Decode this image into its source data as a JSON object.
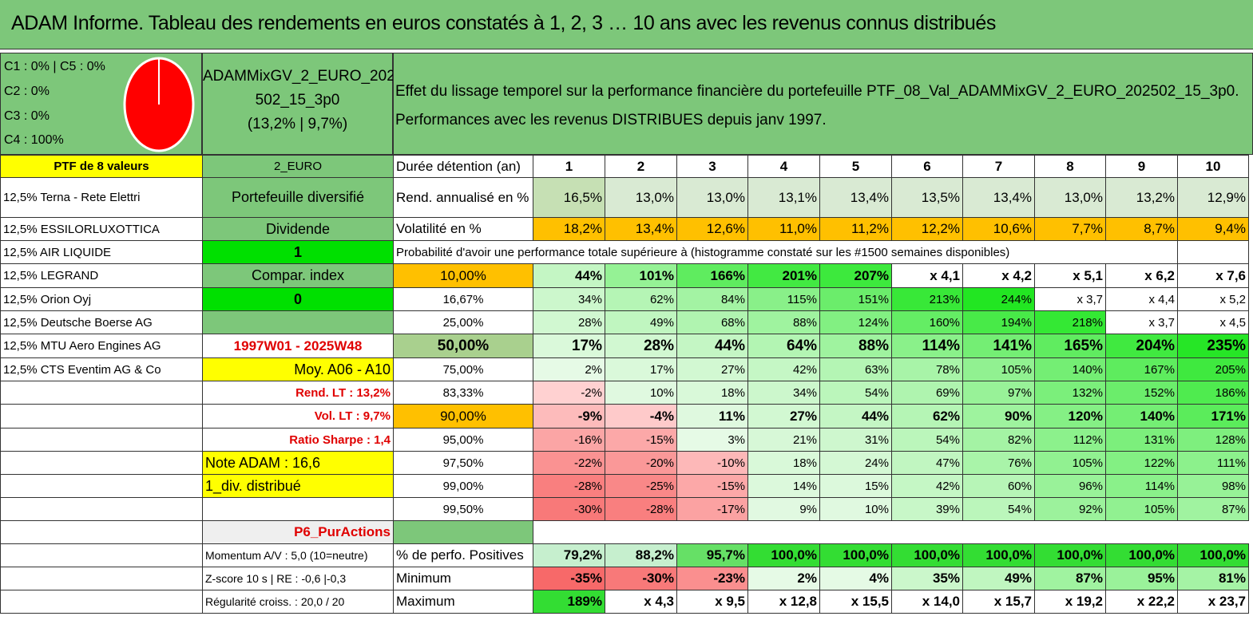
{
  "title": "ADAM Informe. Tableau des rendements en euros constatés à 1, 2, 3 … 10 ans avec les revenus connus distribués",
  "legend": [
    "C1 : 0% | C5 : 0%",
    "C2 : 0%",
    "C3 : 0%",
    "C4 : 100%"
  ],
  "pie": {
    "C4": 100,
    "color": "#ff0000"
  },
  "portfolio_name": [
    "ADAMMixGV_2_EURO_202",
    "502_15_3p0",
    "(13,2% | 9,7%)"
  ],
  "description": [
    "Effet du lissage temporel sur la performance financière du portefeuille PTF_08_Val_ADAMMixGV_2_EURO_202502_15_3p0.",
    "Performances avec les revenus DISTRIBUES depuis janv 1997."
  ],
  "col_a": [
    "PTF de 8 valeurs",
    "12,5% Terna - Rete Elettri",
    "12,5% ESSILORLUXOTTICA",
    "12,5% AIR LIQUIDE",
    "12,5% LEGRAND",
    "12,5% Orion Oyj",
    "12,5% Deutsche Boerse AG",
    "12,5% MTU Aero Engines AG",
    "12,5% CTS Eventim AG & Co",
    "",
    "",
    "",
    "",
    "",
    "",
    "",
    "",
    "",
    ""
  ],
  "col_b": [
    "2_EURO",
    "Portefeuille diversifié",
    "Dividende",
    "1",
    "Compar. index",
    "0",
    "",
    "1997W01 - 2025W48",
    "Moy. A06 - A10",
    "Rend. LT : 13,2%",
    "Vol. LT : 9,7%",
    "Ratio Sharpe : 1,4",
    "Note ADAM : 16,6",
    "1_div. distribué",
    "",
    "P6_PurActions",
    "Momentum A/V : 5,0 (10=neutre)",
    "Z-score 10 s | RE : -0,6 |-0,3",
    "Régularité croiss. : 20,0 / 20"
  ],
  "header": {
    "label": "Durée détention (an)",
    "years": [
      "1",
      "2",
      "3",
      "4",
      "5",
      "6",
      "7",
      "8",
      "9",
      "10"
    ]
  },
  "rend": {
    "label": "Rend. annualisé en %",
    "values": [
      "16,5%",
      "13,0%",
      "13,0%",
      "13,1%",
      "13,4%",
      "13,5%",
      "13,4%",
      "13,0%",
      "13,2%",
      "12,9%"
    ]
  },
  "vol": {
    "label": "Volatilité en %",
    "values": [
      "18,2%",
      "13,4%",
      "12,6%",
      "11,0%",
      "11,2%",
      "12,2%",
      "10,6%",
      "7,7%",
      "8,7%",
      "9,4%"
    ]
  },
  "prob_title": "Probabilité d'avoir une performance totale supérieure à (histogramme constaté sur les #1500 semaines disponibles)",
  "prob_rows": [
    {
      "p": "10,00%",
      "v": [
        "44%",
        "101%",
        "166%",
        "201%",
        "207%",
        "x 4,1",
        "x 4,2",
        "x 5,1",
        "x 6,2",
        "x 7,6"
      ]
    },
    {
      "p": "16,67%",
      "v": [
        "34%",
        "62%",
        "84%",
        "115%",
        "151%",
        "213%",
        "244%",
        "x 3,7",
        "x 4,4",
        "x 5,2"
      ]
    },
    {
      "p": "25,00%",
      "v": [
        "28%",
        "49%",
        "68%",
        "88%",
        "124%",
        "160%",
        "194%",
        "218%",
        "x 3,7",
        "x 4,5"
      ]
    },
    {
      "p": "50,00%",
      "v": [
        "17%",
        "28%",
        "44%",
        "64%",
        "88%",
        "114%",
        "141%",
        "165%",
        "204%",
        "235%"
      ]
    },
    {
      "p": "75,00%",
      "v": [
        "2%",
        "17%",
        "27%",
        "42%",
        "63%",
        "78%",
        "105%",
        "140%",
        "167%",
        "205%"
      ]
    },
    {
      "p": "83,33%",
      "v": [
        "-2%",
        "10%",
        "18%",
        "34%",
        "54%",
        "69%",
        "97%",
        "132%",
        "152%",
        "186%"
      ]
    },
    {
      "p": "90,00%",
      "v": [
        "-9%",
        "-4%",
        "11%",
        "27%",
        "44%",
        "62%",
        "90%",
        "120%",
        "140%",
        "171%"
      ]
    },
    {
      "p": "95,00%",
      "v": [
        "-16%",
        "-15%",
        "3%",
        "21%",
        "31%",
        "54%",
        "82%",
        "112%",
        "131%",
        "128%"
      ]
    },
    {
      "p": "97,50%",
      "v": [
        "-22%",
        "-20%",
        "-10%",
        "18%",
        "24%",
        "47%",
        "76%",
        "105%",
        "122%",
        "111%"
      ]
    },
    {
      "p": "99,00%",
      "v": [
        "-28%",
        "-25%",
        "-15%",
        "14%",
        "15%",
        "42%",
        "60%",
        "96%",
        "114%",
        "98%"
      ]
    },
    {
      "p": "99,50%",
      "v": [
        "-30%",
        "-28%",
        "-17%",
        "9%",
        "10%",
        "39%",
        "54%",
        "92%",
        "105%",
        "87%"
      ]
    }
  ],
  "pos": {
    "label": "% de perfo. Positives",
    "values": [
      "79,2%",
      "88,2%",
      "95,7%",
      "100,0%",
      "100,0%",
      "100,0%",
      "100,0%",
      "100,0%",
      "100,0%",
      "100,0%"
    ]
  },
  "min": {
    "label": "Minimum",
    "values": [
      "-35%",
      "-30%",
      "-23%",
      "2%",
      "4%",
      "35%",
      "49%",
      "87%",
      "95%",
      "81%"
    ]
  },
  "max": {
    "label": "Maximum",
    "values": [
      "189%",
      "x 4,3",
      "x 9,5",
      "x 12,8",
      "x 15,5",
      "x 14,0",
      "x 15,7",
      "x 19,2",
      "x 22,2",
      "x 23,7"
    ]
  }
}
